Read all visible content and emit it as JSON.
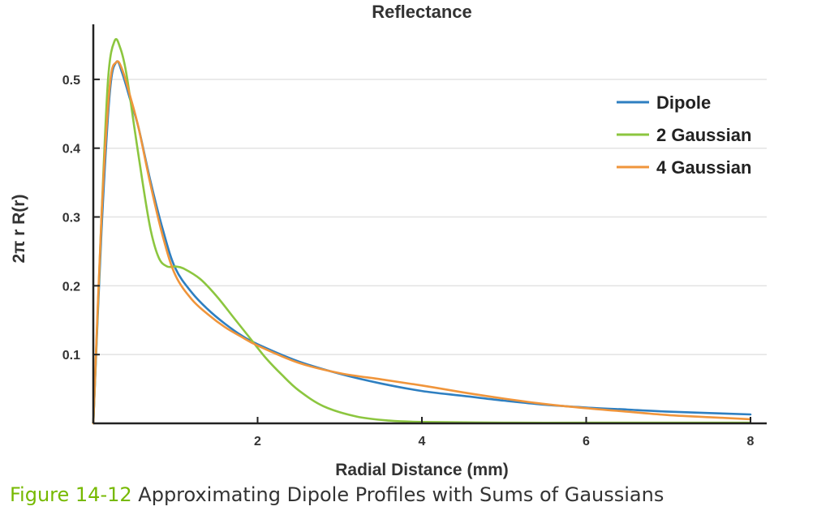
{
  "caption": {
    "figure_number": "Figure 14-12",
    "text": "Approximating Dipole Profiles with Sums of Gaussians"
  },
  "colors": {
    "dipole": "#2e7fc1",
    "gaussian2": "#8cc63f",
    "gaussian4": "#f0953b",
    "caption_accent": "#76b900",
    "grid": "#e3e3e3",
    "axis": "#222222"
  },
  "chart_data": {
    "type": "line",
    "title": "Reflectance",
    "xlabel": "Radial Distance (mm)",
    "ylabel": "2π r R(r)",
    "xlim": [
      0,
      8
    ],
    "ylim": [
      0,
      0.58
    ],
    "xticks": [
      2,
      4,
      6,
      8
    ],
    "yticks": [
      0.1,
      0.2,
      0.3,
      0.4,
      0.5
    ],
    "grid": "horizontal",
    "legend_position": "top-right",
    "series": [
      {
        "name": "Dipole",
        "color": "#2e7fc1",
        "points": [
          [
            0,
            0
          ],
          [
            0.1,
            0.28
          ],
          [
            0.2,
            0.48
          ],
          [
            0.28,
            0.525
          ],
          [
            0.35,
            0.51
          ],
          [
            0.45,
            0.47
          ],
          [
            0.55,
            0.43
          ],
          [
            0.7,
            0.35
          ],
          [
            0.85,
            0.28
          ],
          [
            1.0,
            0.225
          ],
          [
            1.2,
            0.19
          ],
          [
            1.4,
            0.165
          ],
          [
            1.6,
            0.145
          ],
          [
            1.8,
            0.128
          ],
          [
            2.0,
            0.115
          ],
          [
            2.5,
            0.09
          ],
          [
            3.0,
            0.072
          ],
          [
            3.5,
            0.058
          ],
          [
            4.0,
            0.047
          ],
          [
            4.5,
            0.04
          ],
          [
            5.0,
            0.033
          ],
          [
            5.5,
            0.027
          ],
          [
            6.0,
            0.023
          ],
          [
            6.5,
            0.02
          ],
          [
            7.0,
            0.017
          ],
          [
            7.5,
            0.015
          ],
          [
            8.0,
            0.013
          ]
        ]
      },
      {
        "name": "2 Gaussian",
        "color": "#8cc63f",
        "points": [
          [
            0,
            0
          ],
          [
            0.1,
            0.3
          ],
          [
            0.18,
            0.5
          ],
          [
            0.26,
            0.556
          ],
          [
            0.33,
            0.545
          ],
          [
            0.4,
            0.51
          ],
          [
            0.5,
            0.43
          ],
          [
            0.6,
            0.35
          ],
          [
            0.7,
            0.28
          ],
          [
            0.8,
            0.24
          ],
          [
            0.9,
            0.228
          ],
          [
            1.0,
            0.228
          ],
          [
            1.1,
            0.225
          ],
          [
            1.3,
            0.21
          ],
          [
            1.5,
            0.185
          ],
          [
            1.7,
            0.155
          ],
          [
            1.9,
            0.125
          ],
          [
            2.1,
            0.095
          ],
          [
            2.3,
            0.07
          ],
          [
            2.5,
            0.048
          ],
          [
            2.8,
            0.025
          ],
          [
            3.2,
            0.01
          ],
          [
            3.6,
            0.004
          ],
          [
            4.0,
            0.002
          ],
          [
            5.0,
            0.001
          ],
          [
            6.0,
            0.001
          ],
          [
            7.0,
            0.001
          ],
          [
            8.0,
            0.001
          ]
        ]
      },
      {
        "name": "4 Gaussian",
        "color": "#f0953b",
        "points": [
          [
            0,
            0
          ],
          [
            0.1,
            0.3
          ],
          [
            0.2,
            0.49
          ],
          [
            0.28,
            0.525
          ],
          [
            0.35,
            0.515
          ],
          [
            0.45,
            0.475
          ],
          [
            0.55,
            0.43
          ],
          [
            0.7,
            0.345
          ],
          [
            0.85,
            0.27
          ],
          [
            1.0,
            0.215
          ],
          [
            1.2,
            0.18
          ],
          [
            1.4,
            0.158
          ],
          [
            1.6,
            0.14
          ],
          [
            1.8,
            0.126
          ],
          [
            2.0,
            0.113
          ],
          [
            2.5,
            0.088
          ],
          [
            3.0,
            0.073
          ],
          [
            3.5,
            0.064
          ],
          [
            4.0,
            0.055
          ],
          [
            4.5,
            0.045
          ],
          [
            5.0,
            0.036
          ],
          [
            5.5,
            0.028
          ],
          [
            6.0,
            0.022
          ],
          [
            6.5,
            0.017
          ],
          [
            7.0,
            0.012
          ],
          [
            7.5,
            0.009
          ],
          [
            8.0,
            0.006
          ]
        ]
      }
    ]
  }
}
